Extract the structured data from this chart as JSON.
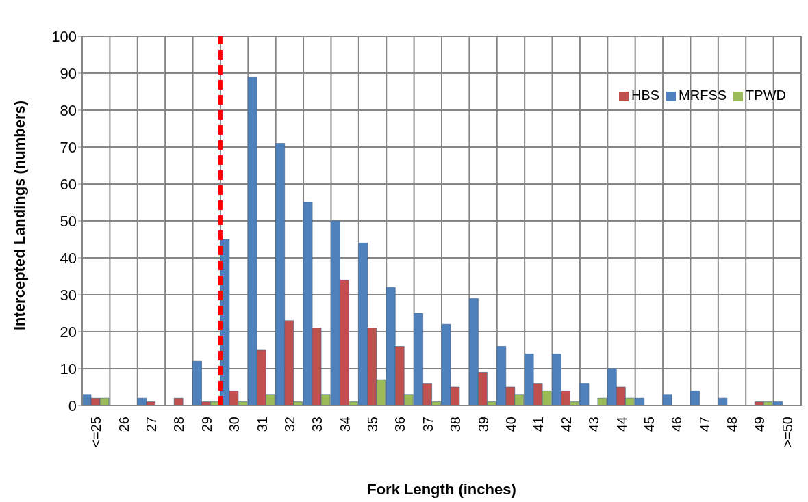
{
  "chart_data": {
    "type": "bar",
    "xlabel": "Fork Length (inches)",
    "ylabel": "Intercepted Landings (numbers)",
    "categories": [
      "<=25",
      "26",
      "27",
      "28",
      "29",
      "30",
      "31",
      "32",
      "33",
      "34",
      "35",
      "36",
      "37",
      "38",
      "39",
      "40",
      "41",
      "42",
      "43",
      "44",
      "45",
      "46",
      "47",
      "48",
      "49",
      ">=50"
    ],
    "series": [
      {
        "name": "MRFSS",
        "color": "#4f81bd",
        "values": [
          3,
          0,
          2,
          0,
          12,
          45,
          89,
          71,
          55,
          50,
          44,
          32,
          25,
          22,
          29,
          16,
          14,
          14,
          6,
          10,
          2,
          3,
          4,
          2,
          0,
          1
        ]
      },
      {
        "name": "HBS",
        "color": "#c0504d",
        "values": [
          2,
          0,
          1,
          2,
          1,
          4,
          15,
          23,
          21,
          34,
          21,
          16,
          6,
          5,
          9,
          5,
          6,
          4,
          0,
          5,
          0,
          0,
          0,
          0,
          1,
          0
        ]
      },
      {
        "name": "TPWD",
        "color": "#9bbb59",
        "values": [
          2,
          0,
          0,
          0,
          1,
          1,
          3,
          1,
          3,
          1,
          7,
          3,
          1,
          0,
          1,
          3,
          4,
          1,
          2,
          2,
          0,
          0,
          0,
          0,
          1,
          0
        ]
      }
    ],
    "ylim": [
      0,
      100
    ],
    "yticks": [
      0,
      10,
      20,
      30,
      40,
      50,
      60,
      70,
      80,
      90,
      100
    ],
    "grid": true,
    "legend": "top right",
    "ref_lines": [
      {
        "axis": "x",
        "value": "30",
        "color": "#ff0000",
        "line_style": "dashed"
      }
    ]
  }
}
